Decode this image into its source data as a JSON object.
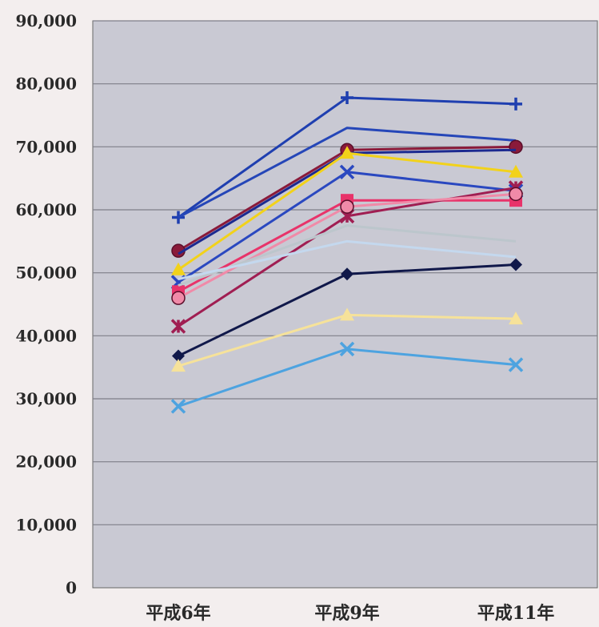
{
  "chart_data": {
    "type": "line",
    "title": "",
    "xlabel": "",
    "ylabel": "",
    "categories": [
      "平成6年",
      "平成9年",
      "平成11年"
    ],
    "ylim": [
      0,
      90000
    ],
    "yticks": [
      0,
      10000,
      20000,
      30000,
      40000,
      50000,
      60000,
      70000,
      80000,
      90000
    ],
    "ytick_labels": [
      "0",
      "10,000",
      "20,000",
      "30,000",
      "40,000",
      "50,000",
      "60,000",
      "70,000",
      "80,000",
      "90,000"
    ],
    "grid": true,
    "plot_background": "#c9c9d3",
    "series": [
      {
        "values": [
          58800,
          77800,
          76800
        ],
        "color": "#1f3fb0",
        "marker": "plus"
      },
      {
        "values": [
          58800,
          73000,
          71000
        ],
        "color": "#2546b8",
        "marker": "none"
      },
      {
        "values": [
          53500,
          69500,
          70000
        ],
        "color": "#8a1a3a",
        "marker": "circle"
      },
      {
        "values": [
          53000,
          69000,
          69500
        ],
        "color": "#1c2a90",
        "marker": "none"
      },
      {
        "values": [
          50500,
          69000,
          66000
        ],
        "color": "#f2d21a",
        "marker": "triangle"
      },
      {
        "values": [
          48500,
          66000,
          63000
        ],
        "color": "#2a48c0",
        "marker": "x"
      },
      {
        "values": [
          47000,
          61500,
          61500
        ],
        "color": "#e8336a",
        "marker": "square"
      },
      {
        "values": [
          41500,
          59000,
          63500
        ],
        "color": "#a01e52",
        "marker": "star"
      },
      {
        "values": [
          46000,
          60500,
          62500
        ],
        "color": "#f08aa8",
        "marker": "circle"
      },
      {
        "values": [
          48000,
          57500,
          55000
        ],
        "color": "#bcc6cc",
        "marker": "none"
      },
      {
        "values": [
          49000,
          55000,
          52500
        ],
        "color": "#c4d8ee",
        "marker": "none"
      },
      {
        "values": [
          36800,
          49800,
          51300
        ],
        "color": "#10184a",
        "marker": "diamond"
      },
      {
        "values": [
          35200,
          43300,
          42700
        ],
        "color": "#f6e29a",
        "marker": "triangle"
      },
      {
        "values": [
          28800,
          37900,
          35400
        ],
        "color": "#4da3e0",
        "marker": "x"
      }
    ]
  }
}
